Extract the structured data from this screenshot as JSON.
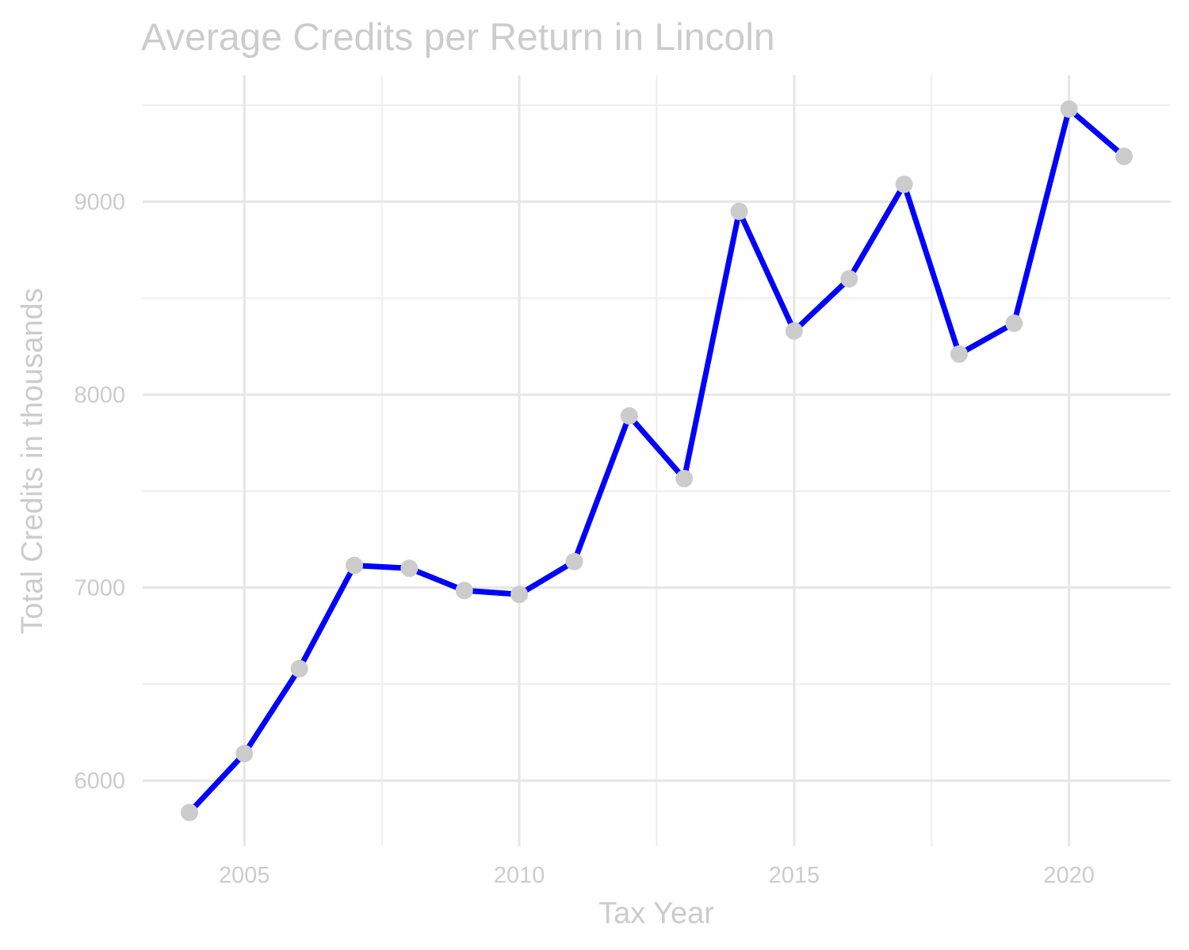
{
  "chart_data": {
    "type": "line",
    "title": "Average Credits per Return in Lincoln",
    "xlabel": "Tax Year",
    "ylabel": "Total Credits in thousands",
    "x": [
      2004,
      2005,
      2006,
      2007,
      2008,
      2009,
      2010,
      2011,
      2012,
      2013,
      2014,
      2015,
      2016,
      2017,
      2018,
      2019,
      2020,
      2021
    ],
    "series": [
      {
        "values": [
          5835,
          6140,
          6580,
          7115,
          7100,
          6985,
          6965,
          7135,
          7890,
          7565,
          8950,
          8330,
          8600,
          9090,
          8210,
          8370,
          9480,
          9235
        ]
      }
    ],
    "xlim": [
      2003.15,
      2021.85
    ],
    "ylim": [
      5660,
      9655
    ],
    "x_ticks": [
      {
        "value": 2005,
        "label": "2005"
      },
      {
        "value": 2010,
        "label": "2010"
      },
      {
        "value": 2015,
        "label": "2015"
      },
      {
        "value": 2020,
        "label": "2020"
      }
    ],
    "y_ticks": [
      {
        "value": 6000,
        "label": "6000"
      },
      {
        "value": 7000,
        "label": "7000"
      },
      {
        "value": 8000,
        "label": "8000"
      },
      {
        "value": 9000,
        "label": "9000"
      }
    ],
    "x_minor_ticks": [
      2007.5,
      2012.5,
      2017.5
    ],
    "y_minor_ticks": [
      6500,
      7500,
      8500,
      9500
    ],
    "grid": true,
    "legend": "none",
    "colors": {
      "line": "#0000ff",
      "point": "#cccccc",
      "text": "#cccccc",
      "grid_major": "#e6e6e6",
      "grid_minor": "#eeeeee",
      "background": "#ffffff"
    }
  }
}
